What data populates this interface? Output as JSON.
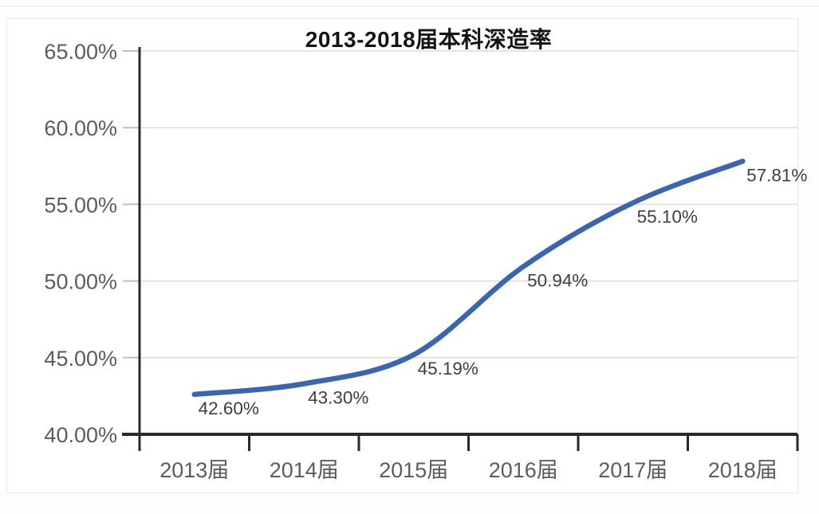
{
  "chart_data": {
    "type": "line",
    "title": "2013-2018届本科深造率",
    "categories": [
      "2013届",
      "2014届",
      "2015届",
      "2016届",
      "2017届",
      "2018届"
    ],
    "series": [
      {
        "name": "本科深造率",
        "values": [
          42.6,
          43.3,
          45.19,
          50.94,
          55.1,
          57.81
        ],
        "point_labels": [
          "42.60%",
          "43.30%",
          "45.19%",
          "50.94%",
          "55.10%",
          "57.81%"
        ]
      }
    ],
    "xlabel": "",
    "ylabel": "",
    "ylim": [
      40,
      65
    ],
    "ytick_step": 5,
    "ytick_labels": [
      "40.00%",
      "45.00%",
      "50.00%",
      "55.00%",
      "60.00%",
      "65.00%"
    ],
    "grid": "horizontal",
    "legend": "none",
    "colors": {
      "line": "#3b66ad",
      "grid": "#dcdcdc",
      "axis": "#2a2a2a",
      "tick_label": "#5c5c5c",
      "data_label": "#3e3e3e",
      "title": "#141414",
      "card_border": "#e7e7e7"
    }
  }
}
